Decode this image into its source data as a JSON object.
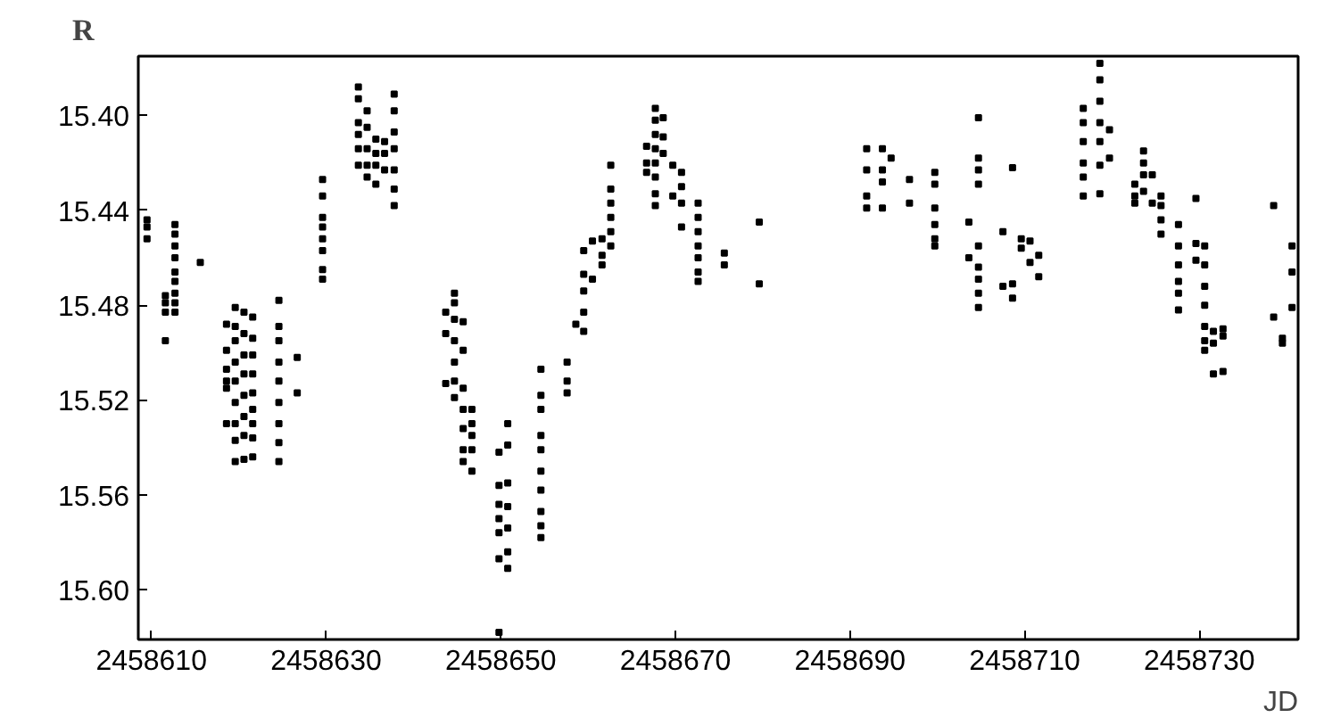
{
  "chart_data": {
    "type": "scatter",
    "xlabel": "JD",
    "ylabel": "R",
    "marker": "square",
    "grid": false,
    "xlim": [
      2458608.5,
      2458741.3
    ],
    "ylim": [
      15.621,
      15.375
    ],
    "xticks": [
      2458610,
      2458630,
      2458650,
      2458670,
      2458690,
      2458710,
      2458730
    ],
    "yticks": [
      {
        "value": 15.4,
        "label": "15.40"
      },
      {
        "value": 15.44,
        "label": "15.44"
      },
      {
        "value": 15.48,
        "label": "15.48"
      },
      {
        "value": 15.52,
        "label": "15.52"
      },
      {
        "value": 15.56,
        "label": "15.56"
      },
      {
        "value": 15.6,
        "label": "15.60"
      }
    ],
    "series": [
      {
        "color": "#000000",
        "x": [
          2458609.5,
          2458609.5,
          2458609.5,
          2458611.6,
          2458611.6,
          2458611.6,
          2458611.6,
          2458612.7,
          2458612.7,
          2458612.7,
          2458612.7,
          2458612.7,
          2458612.7,
          2458612.7,
          2458612.7,
          2458612.7,
          2458615.6,
          2458618.6,
          2458618.6,
          2458618.6,
          2458618.6,
          2458618.6,
          2458618.6,
          2458619.6,
          2458619.6,
          2458619.6,
          2458619.6,
          2458619.6,
          2458619.6,
          2458619.6,
          2458619.6,
          2458619.6,
          2458620.6,
          2458620.6,
          2458620.6,
          2458620.6,
          2458620.6,
          2458620.6,
          2458620.6,
          2458620.6,
          2458621.6,
          2458621.6,
          2458621.6,
          2458621.6,
          2458621.6,
          2458621.6,
          2458621.6,
          2458621.6,
          2458621.6,
          2458624.6,
          2458624.6,
          2458624.6,
          2458624.6,
          2458624.6,
          2458624.6,
          2458624.6,
          2458624.6,
          2458624.6,
          2458626.7,
          2458626.7,
          2458629.6,
          2458629.6,
          2458629.6,
          2458629.6,
          2458629.6,
          2458629.6,
          2458629.6,
          2458629.6,
          2458633.7,
          2458633.7,
          2458633.7,
          2458633.7,
          2458633.7,
          2458633.7,
          2458634.7,
          2458634.7,
          2458634.7,
          2458634.7,
          2458634.7,
          2458635.7,
          2458635.7,
          2458635.7,
          2458635.7,
          2458636.7,
          2458636.7,
          2458636.7,
          2458637.8,
          2458637.8,
          2458637.8,
          2458637.8,
          2458637.8,
          2458637.8,
          2458637.8,
          2458643.7,
          2458643.7,
          2458643.7,
          2458644.7,
          2458644.7,
          2458644.7,
          2458644.7,
          2458644.7,
          2458644.7,
          2458644.7,
          2458645.7,
          2458645.7,
          2458645.7,
          2458645.7,
          2458645.7,
          2458645.7,
          2458645.7,
          2458646.7,
          2458646.7,
          2458646.7,
          2458646.7,
          2458646.7,
          2458649.8,
          2458649.8,
          2458649.8,
          2458649.8,
          2458649.8,
          2458649.8,
          2458649.8,
          2458650.8,
          2458650.8,
          2458650.8,
          2458650.8,
          2458650.8,
          2458650.8,
          2458650.8,
          2458654.6,
          2458654.6,
          2458654.6,
          2458654.6,
          2458654.6,
          2458654.6,
          2458654.6,
          2458654.6,
          2458654.6,
          2458654.6,
          2458657.6,
          2458657.6,
          2458657.6,
          2458658.6,
          2458659.5,
          2458659.5,
          2458659.5,
          2458659.5,
          2458659.5,
          2458660.5,
          2458660.5,
          2458661.6,
          2458661.6,
          2458661.6,
          2458662.6,
          2458662.6,
          2458662.6,
          2458662.6,
          2458662.6,
          2458662.6,
          2458666.7,
          2458666.7,
          2458666.7,
          2458667.7,
          2458667.7,
          2458667.7,
          2458667.7,
          2458667.7,
          2458667.7,
          2458667.7,
          2458667.7,
          2458668.6,
          2458668.6,
          2458668.6,
          2458669.7,
          2458669.7,
          2458670.7,
          2458670.7,
          2458670.7,
          2458670.7,
          2458672.6,
          2458672.6,
          2458672.6,
          2458672.6,
          2458672.6,
          2458672.6,
          2458672.6,
          2458675.6,
          2458675.6,
          2458679.6,
          2458679.6,
          2458691.9,
          2458691.9,
          2458691.9,
          2458691.9,
          2458693.7,
          2458693.7,
          2458693.7,
          2458693.7,
          2458694.7,
          2458696.8,
          2458696.8,
          2458699.7,
          2458699.7,
          2458699.7,
          2458699.7,
          2458699.7,
          2458699.7,
          2458703.6,
          2458703.6,
          2458704.7,
          2458704.7,
          2458704.7,
          2458704.7,
          2458704.7,
          2458704.7,
          2458704.7,
          2458704.7,
          2458704.7,
          2458707.5,
          2458707.5,
          2458708.6,
          2458708.6,
          2458708.6,
          2458709.6,
          2458709.6,
          2458710.6,
          2458710.6,
          2458711.6,
          2458711.6,
          2458716.7,
          2458716.7,
          2458716.7,
          2458716.7,
          2458716.7,
          2458716.7,
          2458718.6,
          2458718.6,
          2458718.6,
          2458718.6,
          2458718.6,
          2458718.6,
          2458718.6,
          2458719.7,
          2458719.7,
          2458722.6,
          2458722.6,
          2458722.6,
          2458723.6,
          2458723.6,
          2458723.6,
          2458723.6,
          2458724.6,
          2458724.6,
          2458725.6,
          2458725.6,
          2458725.6,
          2458725.6,
          2458727.6,
          2458727.6,
          2458727.6,
          2458727.6,
          2458727.6,
          2458727.6,
          2458729.6,
          2458729.6,
          2458729.6,
          2458730.6,
          2458730.6,
          2458730.6,
          2458730.6,
          2458730.6,
          2458730.6,
          2458730.6,
          2458731.6,
          2458731.6,
          2458731.6,
          2458732.7,
          2458732.7,
          2458732.7,
          2458738.5,
          2458738.5,
          2458739.5,
          2458739.5,
          2458740.6,
          2458740.6,
          2458740.6
        ],
        "values": [
          15.444,
          15.447,
          15.452,
          15.476,
          15.479,
          15.483,
          15.495,
          15.446,
          15.45,
          15.455,
          15.46,
          15.466,
          15.47,
          15.475,
          15.479,
          15.483,
          15.462,
          15.488,
          15.499,
          15.507,
          15.512,
          15.515,
          15.53,
          15.481,
          15.489,
          15.495,
          15.504,
          15.512,
          15.521,
          15.53,
          15.537,
          15.546,
          15.483,
          15.492,
          15.501,
          15.509,
          15.518,
          15.527,
          15.535,
          15.545,
          15.485,
          15.494,
          15.501,
          15.509,
          15.517,
          15.524,
          15.53,
          15.536,
          15.544,
          15.478,
          15.489,
          15.495,
          15.504,
          15.512,
          15.521,
          15.53,
          15.538,
          15.546,
          15.502,
          15.517,
          15.427,
          15.434,
          15.443,
          15.447,
          15.452,
          15.457,
          15.465,
          15.469,
          15.388,
          15.393,
          15.403,
          15.408,
          15.414,
          15.421,
          15.398,
          15.405,
          15.414,
          15.421,
          15.426,
          15.41,
          15.416,
          15.421,
          15.429,
          15.411,
          15.416,
          15.423,
          15.391,
          15.398,
          15.407,
          15.414,
          15.423,
          15.431,
          15.438,
          15.483,
          15.492,
          15.513,
          15.475,
          15.479,
          15.486,
          15.495,
          15.504,
          15.512,
          15.519,
          15.487,
          15.499,
          15.515,
          15.524,
          15.532,
          15.541,
          15.546,
          15.524,
          15.53,
          15.535,
          15.541,
          15.55,
          15.542,
          15.556,
          15.564,
          15.57,
          15.576,
          15.587,
          15.618,
          15.53,
          15.539,
          15.555,
          15.565,
          15.574,
          15.584,
          15.591,
          15.507,
          15.518,
          15.524,
          15.535,
          15.541,
          15.55,
          15.558,
          15.567,
          15.573,
          15.578,
          15.504,
          15.512,
          15.517,
          15.488,
          15.457,
          15.467,
          15.474,
          15.483,
          15.491,
          15.453,
          15.469,
          15.452,
          15.459,
          15.463,
          15.421,
          15.431,
          15.437,
          15.443,
          15.449,
          15.455,
          15.413,
          15.42,
          15.424,
          15.397,
          15.402,
          15.408,
          15.414,
          15.42,
          15.426,
          15.433,
          15.438,
          15.401,
          15.409,
          15.416,
          15.421,
          15.434,
          15.424,
          15.43,
          15.437,
          15.447,
          15.437,
          15.443,
          15.449,
          15.455,
          15.46,
          15.466,
          15.47,
          15.458,
          15.463,
          15.445,
          15.471,
          15.414,
          15.423,
          15.434,
          15.439,
          15.414,
          15.423,
          15.428,
          15.439,
          15.418,
          15.427,
          15.437,
          15.424,
          15.429,
          15.439,
          15.446,
          15.452,
          15.455,
          15.445,
          15.46,
          15.401,
          15.418,
          15.423,
          15.429,
          15.455,
          15.464,
          15.469,
          15.475,
          15.481,
          15.449,
          15.472,
          15.422,
          15.471,
          15.477,
          15.452,
          15.456,
          15.453,
          15.462,
          15.459,
          15.468,
          15.397,
          15.403,
          15.411,
          15.42,
          15.426,
          15.434,
          15.378,
          15.385,
          15.394,
          15.403,
          15.411,
          15.421,
          15.433,
          15.406,
          15.418,
          15.429,
          15.434,
          15.437,
          15.415,
          15.42,
          15.425,
          15.432,
          15.425,
          15.437,
          15.434,
          15.438,
          15.444,
          15.45,
          15.446,
          15.455,
          15.463,
          15.47,
          15.475,
          15.482,
          15.435,
          15.454,
          15.461,
          15.455,
          15.463,
          15.472,
          15.48,
          15.489,
          15.495,
          15.499,
          15.491,
          15.496,
          15.509,
          15.49,
          15.493,
          15.508,
          15.438,
          15.485,
          15.494,
          15.496,
          15.455,
          15.466,
          15.481
        ]
      }
    ]
  }
}
